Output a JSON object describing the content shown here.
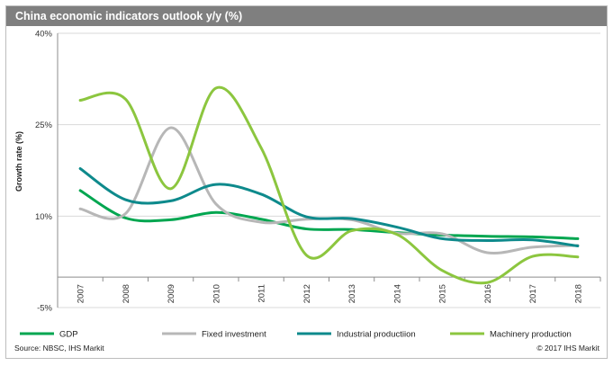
{
  "chart_data": {
    "type": "line",
    "title": "China economic indicators outlook y/y (%)",
    "ylabel": "Growth rate (%)",
    "xlabel": "",
    "x": [
      "2007",
      "2008",
      "2009",
      "2010",
      "2011",
      "2012",
      "2013",
      "2014",
      "2015",
      "2016",
      "2017",
      "2018"
    ],
    "ylim": [
      -5,
      40
    ],
    "yticks": [
      -5,
      10,
      25,
      40
    ],
    "ytick_labels": [
      "-5%",
      "10%",
      "25%",
      "40%"
    ],
    "grid": true,
    "legend_position": "bottom",
    "series": [
      {
        "name": "GDP",
        "color": "#00a650",
        "values": [
          14.2,
          9.7,
          9.4,
          10.6,
          9.5,
          7.9,
          7.8,
          7.3,
          6.9,
          6.7,
          6.6,
          6.3
        ]
      },
      {
        "name": "Fixed investment",
        "color": "#b7b7b7",
        "values": [
          11.2,
          10.4,
          24.5,
          12.0,
          9.0,
          9.5,
          9.4,
          7.2,
          7.1,
          4.0,
          4.9,
          5.2
        ]
      },
      {
        "name": "Industrial productiion",
        "color": "#0e8a8c",
        "values": [
          17.8,
          12.7,
          12.5,
          15.2,
          13.6,
          9.9,
          9.6,
          8.2,
          6.3,
          6.0,
          6.1,
          5.1
        ]
      },
      {
        "name": "Machinery production",
        "color": "#8cc63f",
        "values": [
          29.0,
          29.2,
          14.5,
          31.0,
          21.2,
          3.6,
          7.6,
          7.0,
          1.1,
          -0.9,
          3.4,
          3.3
        ]
      }
    ]
  },
  "footer": {
    "source": "Source: NBSC, IHS Markit",
    "copyright": "© 2017 IHS Markit"
  }
}
